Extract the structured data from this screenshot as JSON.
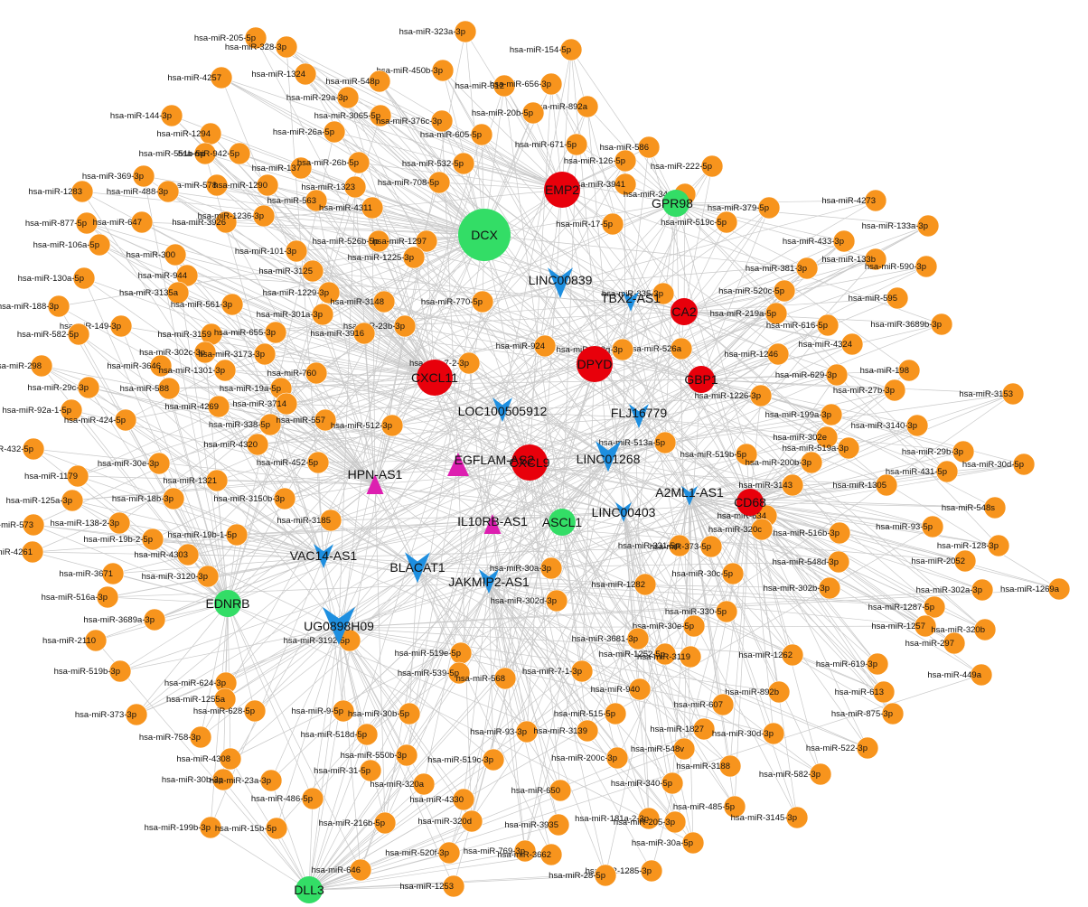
{
  "colors": {
    "mirna": "#f7941d",
    "mrna_red": "#e8000b",
    "mrna_green": "#33dd66",
    "lncrna_blue": "#1e8fe0",
    "lncrna_magenta": "#dd1fb0",
    "edge": "#c9c9c9"
  },
  "legend_shapes": {
    "circle": "miRNA / mRNA",
    "v-triangle": "lncRNA",
    "triangle": "lncRNA"
  },
  "hubs": [
    {
      "label": "DCX",
      "shape": "circle",
      "color": "green",
      "size": "xl"
    },
    {
      "label": "EMP2",
      "shape": "circle",
      "color": "red",
      "size": "l"
    },
    {
      "label": "GPR98",
      "shape": "circle",
      "color": "green",
      "size": "m"
    },
    {
      "label": "CA2",
      "shape": "circle",
      "color": "red",
      "size": "m"
    },
    {
      "label": "DPYD",
      "shape": "circle",
      "color": "red",
      "size": "l"
    },
    {
      "label": "CXCL11",
      "shape": "circle",
      "color": "red",
      "size": "l"
    },
    {
      "label": "GBP1",
      "shape": "circle",
      "color": "red",
      "size": "m"
    },
    {
      "label": "CXCL9",
      "shape": "circle",
      "color": "red",
      "size": "l"
    },
    {
      "label": "CD68",
      "shape": "circle",
      "color": "red",
      "size": "m"
    },
    {
      "label": "ASCL1",
      "shape": "circle",
      "color": "green",
      "size": "m"
    },
    {
      "label": "EDNRB",
      "shape": "circle",
      "color": "green",
      "size": "m"
    },
    {
      "label": "DLL3",
      "shape": "circle",
      "color": "green",
      "size": "m"
    },
    {
      "label": "LINC00839",
      "shape": "vtri",
      "color": "blue",
      "size": "l"
    },
    {
      "label": "TBX2-AS1",
      "shape": "vtri",
      "color": "blue",
      "size": "s"
    },
    {
      "label": "LOC100505912",
      "shape": "vtri",
      "color": "blue",
      "size": "m"
    },
    {
      "label": "FLJ16779",
      "shape": "vtri",
      "color": "blue",
      "size": "m"
    },
    {
      "label": "LINC01268",
      "shape": "vtri",
      "color": "blue",
      "size": "l"
    },
    {
      "label": "A2ML1-AS1",
      "shape": "vtri",
      "color": "blue",
      "size": "s"
    },
    {
      "label": "LINC00403",
      "shape": "vtri",
      "color": "blue",
      "size": "s"
    },
    {
      "label": "VAC14-AS1",
      "shape": "vtri",
      "color": "blue",
      "size": "m"
    },
    {
      "label": "BLACAT1",
      "shape": "vtri",
      "color": "blue",
      "size": "l"
    },
    {
      "label": "JAKMIP2-AS1",
      "shape": "vtri",
      "color": "blue",
      "size": "m"
    },
    {
      "label": "UG0898H09",
      "shape": "vtri",
      "color": "blue",
      "size": "xl"
    },
    {
      "label": "HPN-AS1",
      "shape": "tri",
      "color": "magenta",
      "size": "m"
    },
    {
      "label": "EGFLAM-AS2",
      "shape": "tri",
      "color": "magenta",
      "size": "l"
    },
    {
      "label": "IL10RB-AS1",
      "shape": "tri",
      "color": "magenta",
      "size": "m"
    }
  ],
  "mirnas": [
    "hsa-miR-323a-3p",
    "hsa-miR-205-5p",
    "hsa-miR-328-3p",
    "hsa-miR-154-5p",
    "hsa-miR-1324",
    "hsa-miR-450b-3p",
    "hsa-miR-4257",
    "hsa-miR-548p",
    "hsa-miR-612",
    "hsa-miR-656-3p",
    "hsa-miR-29a-3p",
    "hsa-miR-892a",
    "hsa-miR-144-3p",
    "hsa-miR-3065-5p",
    "hsa-miR-20b-5p",
    "hsa-miR-1294",
    "hsa-miR-376c-3p",
    "hsa-miR-26a-5p",
    "hsa-miR-671-5p",
    "hsa-miR-586",
    "hsa-miR-605-5p",
    "hsa-miR-551b-5p",
    "hsa-miR-942-5p",
    "hsa-miR-126-5p",
    "hsa-miR-137",
    "hsa-miR-26b-5p",
    "hsa-miR-222-5p",
    "hsa-miR-369-3p",
    "hsa-miR-532-5p",
    "hsa-miR-578",
    "hsa-miR-1290",
    "hsa-miR-1323",
    "hsa-miR-708-5p",
    "hsa-miR-3941",
    "hsa-miR-34a-5p",
    "hsa-miR-1283",
    "hsa-miR-488-3p",
    "hsa-miR-379-5p",
    "hsa-miR-4273",
    "hsa-miR-563",
    "hsa-miR-4311",
    "hsa-miR-877-5p",
    "hsa-miR-647",
    "hsa-miR-3926",
    "hsa-miR-1236-3p",
    "hsa-miR-519c-5p",
    "hsa-miR-526b-5p",
    "hsa-miR-1297",
    "hsa-miR-133a-3p",
    "hsa-miR-106a-5p",
    "hsa-miR-300",
    "hsa-miR-101-3p",
    "hsa-miR-1225-3p",
    "hsa-miR-17-5p",
    "hsa-miR-433-3p",
    "hsa-miR-3125",
    "hsa-miR-335-3p",
    "hsa-miR-133b",
    "hsa-miR-130a-5p",
    "hsa-miR-944",
    "hsa-miR-381-3p",
    "hsa-miR-590-3p",
    "hsa-miR-3135a",
    "hsa-miR-1229-3p",
    "hsa-miR-3148",
    "hsa-miR-520c-5p",
    "hsa-miR-561-3p",
    "hsa-miR-219a-5p",
    "hsa-miR-595",
    "hsa-miR-188-3p",
    "hsa-miR-301a-3p",
    "hsa-miR-770-5p",
    "hsa-miR-149-3p",
    "hsa-miR-23b-3p",
    "hsa-miR-616-5p",
    "hsa-miR-3689b-3p",
    "hsa-miR-582-5p",
    "hsa-miR-3159",
    "hsa-miR-655-3p",
    "hsa-miR-3916",
    "hsa-miR-526a",
    "hsa-miR-4324",
    "hsa-miR-302c-3p",
    "hsa-miR-3173-3p",
    "hsa-miR-924",
    "hsa-miR-548g-3p",
    "hsa-miR-1246",
    "hsa-miR-298",
    "hsa-miR-3646",
    "hsa-miR-1301-3p",
    "hsa-miR-760",
    "hsa-miR-7-2-3p",
    "hsa-miR-629-3p",
    "hsa-miR-198",
    "hsa-miR-29c-3p",
    "hsa-miR-588",
    "hsa-miR-19a-5p",
    "hsa-miR-27b-3p",
    "hsa-miR-1226-3p",
    "hsa-miR-3153",
    "hsa-miR-3714",
    "hsa-miR-92a-1-5p",
    "hsa-miR-4269",
    "hsa-miR-199a-3p",
    "hsa-miR-424-5p",
    "hsa-miR-338-5p",
    "hsa-miR-557",
    "hsa-miR-512-3p",
    "hsa-miR-3140-3p",
    "hsa-miR-302e",
    "hsa-miR-432-5p",
    "hsa-miR-4320",
    "hsa-miR-513a-5p",
    "hsa-miR-519a-3p",
    "hsa-miR-29b-3p",
    "hsa-miR-30e-3p",
    "hsa-miR-452-5p",
    "hsa-miR-519b-5p",
    "hsa-miR-200b-3p",
    "hsa-miR-30d-5p",
    "hsa-miR-1179",
    "hsa-miR-3143",
    "hsa-miR-1321",
    "hsa-miR-1305",
    "hsa-miR-431-5p",
    "hsa-miR-125a-3p",
    "hsa-miR-18b-3p",
    "hsa-miR-3150b-3p",
    "hsa-miR-548s",
    "hsa-miR-138-2-3p",
    "hsa-miR-634",
    "hsa-miR-573",
    "hsa-miR-19b-2-5p",
    "hsa-miR-19b-1-5p",
    "hsa-miR-3185",
    "hsa-miR-516b-3p",
    "hsa-miR-93-5p",
    "hsa-miR-320c",
    "hsa-miR-128-3p",
    "hsa-miR-4261",
    "hsa-miR-4303",
    "hsa-miR-331-5p",
    "hsa-miR-373-5p",
    "hsa-miR-548d-3p",
    "hsa-miR-2052",
    "hsa-miR-3671",
    "hsa-miR-3120-3p",
    "hsa-miR-30a-3p",
    "hsa-miR-30c-5p",
    "hsa-miR-302a-3p",
    "hsa-miR-1269a",
    "hsa-miR-516a-3p",
    "hsa-miR-1282",
    "hsa-miR-302b-3p",
    "hsa-miR-1287-5p",
    "hsa-miR-3689a-3p",
    "hsa-miR-302d-3p",
    "hsa-miR-330-5p",
    "hsa-miR-1257",
    "hsa-miR-2110",
    "hsa-miR-30e-5p",
    "hsa-miR-320b",
    "hsa-miR-3192-5p",
    "hsa-miR-3681-3p",
    "hsa-miR-297",
    "hsa-miR-519e-5p",
    "hsa-miR-1252-5p",
    "hsa-miR-3119",
    "hsa-miR-1262",
    "hsa-miR-519b-3p",
    "hsa-miR-7-1-3p",
    "hsa-miR-619-3p",
    "hsa-miR-624-3p",
    "hsa-miR-539-5p",
    "hsa-miR-568",
    "hsa-miR-449a",
    "hsa-miR-1255a",
    "hsa-miR-940",
    "hsa-miR-892b",
    "hsa-miR-9-5p",
    "hsa-miR-613",
    "hsa-miR-628-5p",
    "hsa-miR-515-5p",
    "hsa-miR-607",
    "hsa-miR-373-3p",
    "hsa-miR-30b-5p",
    "hsa-miR-875-3p",
    "hsa-miR-758-3p",
    "hsa-miR-518d-5p",
    "hsa-miR-93-3p",
    "hsa-miR-3139",
    "hsa-miR-1827",
    "hsa-miR-30d-3p",
    "hsa-miR-4308",
    "hsa-miR-550b-3p",
    "hsa-miR-519c-3p",
    "hsa-miR-548v",
    "hsa-miR-522-3p",
    "hsa-miR-31-5p",
    "hsa-miR-200c-3p",
    "hsa-miR-30b-3p",
    "hsa-miR-23a-3p",
    "hsa-miR-320a",
    "hsa-miR-3188",
    "hsa-miR-582-3p",
    "hsa-miR-486-5p",
    "hsa-miR-650",
    "hsa-miR-4330",
    "hsa-miR-340-5p",
    "hsa-miR-485-5p",
    "hsa-miR-199b-3p",
    "hsa-miR-15b-5p",
    "hsa-miR-216b-5p",
    "hsa-miR-320d",
    "hsa-miR-3935",
    "hsa-miR-181a-2-3p",
    "hsa-miR-205-3p",
    "hsa-miR-3145-3p",
    "hsa-miR-30a-5p",
    "hsa-miR-520f-3p",
    "hsa-miR-769-3p",
    "hsa-miR-3662",
    "hsa-miR-1285-3p",
    "hsa-miR-646",
    "hsa-miR-28-5p",
    "hsa-miR-1253",
    "hsa-miR-27a-3p",
    "hsa-miR-3187-3p"
  ]
}
